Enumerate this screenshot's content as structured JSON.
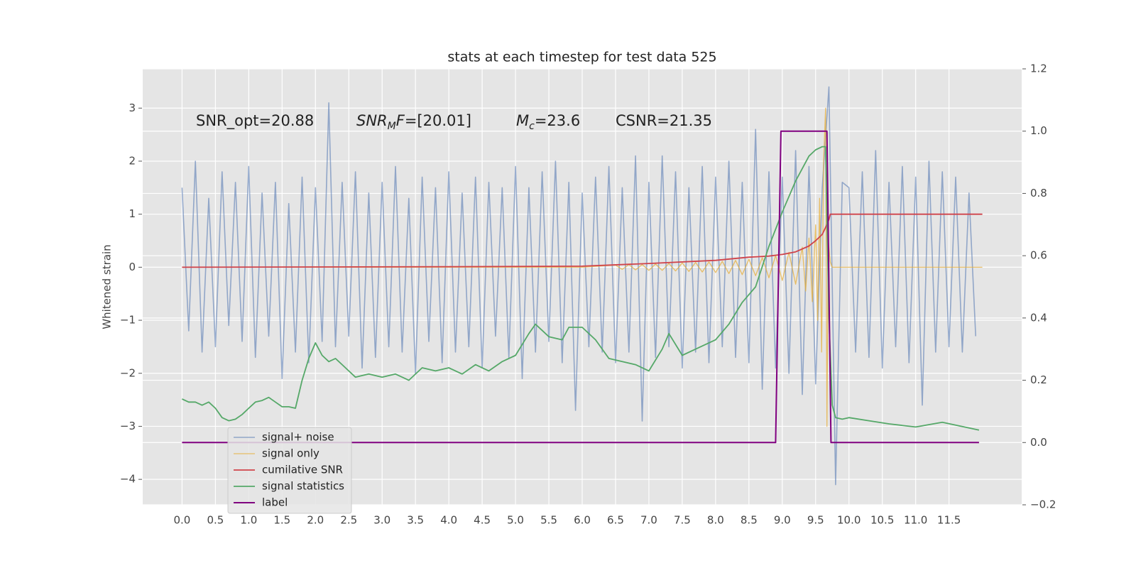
{
  "chart_data": {
    "type": "line",
    "title": "stats at each timestep for test data 525",
    "ylabel": "Whitened strain",
    "xlim": [
      -0.59,
      12.59
    ],
    "ylim": [
      -4.48,
      3.74
    ],
    "y2lim": [
      -0.2,
      1.2
    ],
    "xticks": [
      {
        "value": 0,
        "label": "0.0"
      },
      0.5,
      {
        "value": 1,
        "label": "1.0"
      },
      1.5,
      {
        "value": 2,
        "label": "2.0"
      },
      2.5,
      {
        "value": 3,
        "label": "3.0"
      },
      3.5,
      {
        "value": 4,
        "label": "4.0"
      },
      4.5,
      {
        "value": 5,
        "label": "5.0"
      },
      5.5,
      {
        "value": 6,
        "label": "6.0"
      },
      6.5,
      {
        "value": 7,
        "label": "7.0"
      },
      7.5,
      {
        "value": 8,
        "label": "8.0"
      },
      8.5,
      {
        "value": 9,
        "label": "9.0"
      },
      9.5,
      {
        "value": 10,
        "label": "10.0"
      },
      10.5,
      {
        "value": 11,
        "label": "11.0"
      },
      11.5
    ],
    "yticks": [
      {
        "value": -4,
        "label": "−4"
      },
      {
        "value": -3,
        "label": "−3"
      },
      {
        "value": -2,
        "label": "−2"
      },
      {
        "value": -1,
        "label": "−1"
      },
      0,
      1,
      2,
      3
    ],
    "y2ticks": [
      {
        "value": -0.2,
        "label": "−0.2"
      },
      {
        "value": 0,
        "label": "0.0"
      },
      0.2,
      0.4,
      0.6,
      0.8,
      {
        "value": 1,
        "label": "1.0"
      },
      1.2
    ],
    "grid": true,
    "legend": "lower left",
    "annotations": [
      [
        "SNR_opt=20.88"
      ],
      [
        "SNR",
        "M",
        "F",
        "=[20.01]"
      ],
      [
        "M",
        "c",
        "=23.6"
      ],
      [
        "CSNR=21.35"
      ]
    ],
    "series": [
      {
        "name": "signal+ noise",
        "color": "#4c72b0",
        "x": [
          0,
          0.1,
          0.2,
          0.3,
          0.4,
          0.5,
          0.6,
          0.7,
          0.8,
          0.9,
          1,
          1.1,
          1.2,
          1.3,
          1.4,
          1.5,
          1.6,
          1.7,
          1.8,
          1.9,
          2,
          2.1,
          2.2,
          2.3,
          2.4,
          2.5,
          2.6,
          2.7,
          2.8,
          2.9,
          3,
          3.1,
          3.2,
          3.3,
          3.4,
          3.5,
          3.6,
          3.7,
          3.8,
          3.9,
          4,
          4.1,
          4.2,
          4.3,
          4.4,
          4.5,
          4.6,
          4.7,
          4.8,
          4.9,
          5,
          5.1,
          5.2,
          5.3,
          5.4,
          5.5,
          5.6,
          5.7,
          5.8,
          5.9,
          6,
          6.1,
          6.2,
          6.3,
          6.4,
          6.5,
          6.6,
          6.7,
          6.8,
          6.9,
          7,
          7.1,
          7.2,
          7.3,
          7.4,
          7.5,
          7.6,
          7.7,
          7.8,
          7.9,
          8,
          8.1,
          8.2,
          8.3,
          8.4,
          8.5,
          8.6,
          8.7,
          8.8,
          8.9,
          9,
          9.1,
          9.2,
          9.3,
          9.4,
          9.5,
          9.6,
          9.7,
          9.8,
          9.9,
          10,
          10.1,
          10.2,
          10.3,
          10.4,
          10.5,
          10.6,
          10.7,
          10.8,
          10.9,
          11,
          11.1,
          11.2,
          11.3,
          11.4,
          11.5,
          11.6,
          11.7,
          11.8,
          11.9
        ],
        "values": [
          1.5,
          -1.2,
          2.0,
          -1.6,
          1.3,
          -1.5,
          1.8,
          -1.1,
          1.6,
          -1.4,
          1.9,
          -1.7,
          1.4,
          -1.3,
          1.6,
          -2.1,
          1.2,
          -1.6,
          1.7,
          -1.8,
          1.5,
          -1.4,
          3.1,
          -1.5,
          1.6,
          -1.3,
          1.8,
          -1.9,
          1.4,
          -1.7,
          1.6,
          -1.5,
          1.9,
          -1.6,
          1.3,
          -2.0,
          1.7,
          -1.4,
          1.5,
          -1.8,
          1.8,
          -1.6,
          1.4,
          -1.5,
          1.7,
          -1.9,
          1.6,
          -1.3,
          1.5,
          -1.7,
          1.9,
          -2.1,
          1.5,
          -1.6,
          1.8,
          -1.4,
          2.0,
          -1.8,
          1.6,
          -2.7,
          1.4,
          -1.5,
          1.7,
          -1.6,
          1.9,
          -1.8,
          1.5,
          -1.6,
          2.1,
          -2.9,
          1.6,
          -1.7,
          2.1,
          -1.5,
          1.8,
          -1.9,
          1.5,
          -1.6,
          1.9,
          -1.8,
          1.7,
          -1.5,
          2.0,
          -1.7,
          1.6,
          -1.8,
          2.6,
          -2.3,
          1.8,
          -1.9,
          1.7,
          -2.0,
          2.2,
          -2.4,
          1.9,
          -2.2,
          1.5,
          3.4,
          -4.1,
          1.6,
          1.5,
          -1.6,
          1.8,
          -1.7,
          2.2,
          -1.9,
          1.6,
          -1.5,
          1.9,
          -1.8,
          1.7,
          -2.6,
          2.0,
          -1.6,
          1.8,
          -1.5,
          1.7,
          -1.6,
          1.4,
          -1.3
        ]
      },
      {
        "name": "signal only",
        "color": "#e5ae38",
        "x": [
          0,
          6,
          6.5,
          6.6,
          6.7,
          6.8,
          6.9,
          7,
          7.1,
          7.2,
          7.3,
          7.4,
          7.5,
          7.6,
          7.7,
          7.8,
          7.9,
          8,
          8.1,
          8.2,
          8.3,
          8.4,
          8.5,
          8.6,
          8.7,
          8.8,
          8.9,
          9,
          9.1,
          9.2,
          9.3,
          9.35,
          9.4,
          9.45,
          9.5,
          9.53,
          9.56,
          9.59,
          9.62,
          9.65,
          9.67,
          9.69,
          9.72,
          9.75,
          12
        ],
        "values": [
          0,
          0,
          0.04,
          -0.04,
          0.05,
          -0.05,
          0.05,
          -0.06,
          0.06,
          -0.06,
          0.07,
          -0.07,
          0.08,
          -0.08,
          0.09,
          -0.09,
          0.1,
          -0.1,
          0.11,
          -0.12,
          0.13,
          -0.14,
          0.15,
          -0.16,
          0.18,
          -0.2,
          0.22,
          -0.25,
          0.28,
          -0.32,
          0.38,
          -0.45,
          0.55,
          -0.65,
          0.8,
          -1.0,
          1.3,
          -1.6,
          2.0,
          3.0,
          -3.0,
          0.5,
          0.1,
          0,
          0
        ]
      },
      {
        "name": "cumilative SNR",
        "color": "#d0434a",
        "x": [
          0,
          2,
          4,
          6,
          7,
          8,
          8.5,
          8.8,
          9,
          9.2,
          9.4,
          9.5,
          9.6,
          9.65,
          9.7,
          9.72,
          12
        ],
        "values": [
          0,
          0.005,
          0.01,
          0.02,
          0.07,
          0.13,
          0.19,
          0.21,
          0.24,
          0.29,
          0.4,
          0.5,
          0.62,
          0.75,
          0.9,
          1.0,
          1.0
        ]
      },
      {
        "name": "signal statistics",
        "color": "#55a868",
        "axis": "y2",
        "x": [
          0,
          0.1,
          0.2,
          0.3,
          0.4,
          0.5,
          0.6,
          0.7,
          0.8,
          0.9,
          1,
          1.1,
          1.2,
          1.3,
          1.4,
          1.5,
          1.6,
          1.7,
          1.8,
          1.9,
          2,
          2.1,
          2.2,
          2.3,
          2.4,
          2.5,
          2.6,
          2.8,
          3,
          3.2,
          3.4,
          3.6,
          3.8,
          4,
          4.2,
          4.4,
          4.6,
          4.8,
          5,
          5.2,
          5.3,
          5.5,
          5.7,
          5.8,
          6,
          6.2,
          6.4,
          6.6,
          6.8,
          7,
          7.2,
          7.3,
          7.5,
          7.7,
          8,
          8.2,
          8.4,
          8.6,
          8.8,
          9,
          9.2,
          9.4,
          9.5,
          9.6,
          9.65,
          9.7,
          9.75,
          9.8,
          9.9,
          10,
          10.3,
          10.6,
          11,
          11.4,
          11.95
        ],
        "values": [
          0.14,
          0.13,
          0.13,
          0.12,
          0.13,
          0.11,
          0.08,
          0.07,
          0.075,
          0.09,
          0.11,
          0.13,
          0.135,
          0.145,
          0.13,
          0.115,
          0.115,
          0.11,
          0.2,
          0.27,
          0.32,
          0.28,
          0.26,
          0.27,
          0.25,
          0.23,
          0.21,
          0.22,
          0.21,
          0.22,
          0.2,
          0.24,
          0.23,
          0.24,
          0.22,
          0.25,
          0.23,
          0.26,
          0.28,
          0.35,
          0.38,
          0.34,
          0.33,
          0.37,
          0.37,
          0.33,
          0.27,
          0.26,
          0.25,
          0.23,
          0.3,
          0.35,
          0.28,
          0.3,
          0.33,
          0.38,
          0.45,
          0.5,
          0.63,
          0.74,
          0.84,
          0.92,
          0.94,
          0.95,
          0.95,
          0.4,
          0.12,
          0.08,
          0.075,
          0.08,
          0.07,
          0.06,
          0.05,
          0.065,
          0.04
        ]
      },
      {
        "name": "label",
        "color": "#800080",
        "axis": "y2",
        "x": [
          0,
          8.9,
          8.98,
          9.67,
          9.73,
          11.95
        ],
        "values": [
          0,
          0,
          1,
          1,
          0,
          0
        ]
      }
    ]
  }
}
